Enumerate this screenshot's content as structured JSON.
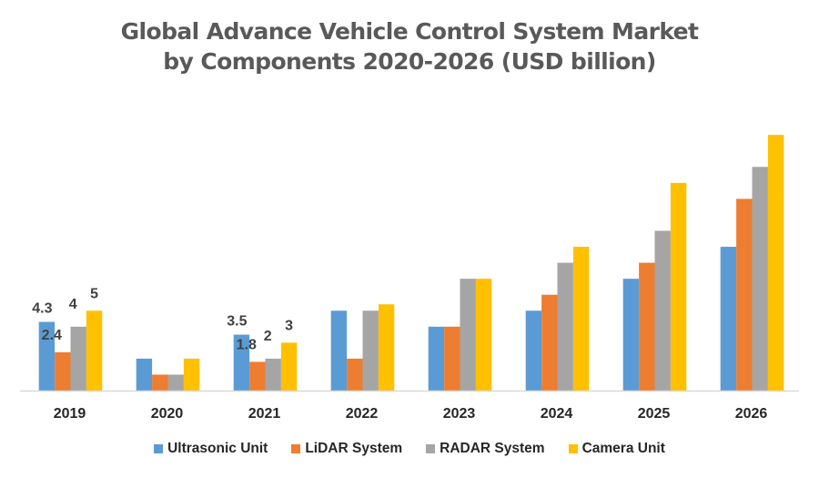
{
  "chart_data": {
    "type": "bar",
    "title_lines": [
      "Global Advance Vehicle Control System Market",
      "by Components 2020-2026 (USD billion)"
    ],
    "xlabel": "",
    "ylabel": "",
    "categories": [
      "2019",
      "2020",
      "2021",
      "2022",
      "2023",
      "2024",
      "2025",
      "2026"
    ],
    "ylim": [
      0,
      16
    ],
    "grid": false,
    "legend_position": "bottom",
    "series": [
      {
        "name": "Ultrasonic Unit",
        "color": "#5B9BD5",
        "values": [
          4.3,
          2.0,
          3.5,
          5.0,
          4.0,
          5.0,
          7.0,
          9.0
        ],
        "labels": [
          "4.3",
          null,
          "3.5",
          null,
          null,
          null,
          null,
          null
        ]
      },
      {
        "name": "LiDAR System",
        "color": "#ED7D31",
        "values": [
          2.4,
          1.0,
          1.8,
          2.0,
          4.0,
          6.0,
          8.0,
          12.0
        ],
        "labels": [
          "2.4",
          null,
          "1.8",
          null,
          null,
          null,
          null,
          null
        ]
      },
      {
        "name": "RADAR System",
        "color": "#A5A5A5",
        "values": [
          4.0,
          1.0,
          2.0,
          5.0,
          7.0,
          8.0,
          10.0,
          14.0
        ],
        "labels": [
          "4",
          null,
          "2",
          null,
          null,
          null,
          null,
          null
        ]
      },
      {
        "name": "Camera Unit",
        "color": "#FFC000",
        "values": [
          5.0,
          2.0,
          3.0,
          5.4,
          7.0,
          9.0,
          13.0,
          16.0
        ],
        "labels": [
          "5",
          null,
          "3",
          null,
          null,
          null,
          null,
          null
        ]
      }
    ]
  }
}
